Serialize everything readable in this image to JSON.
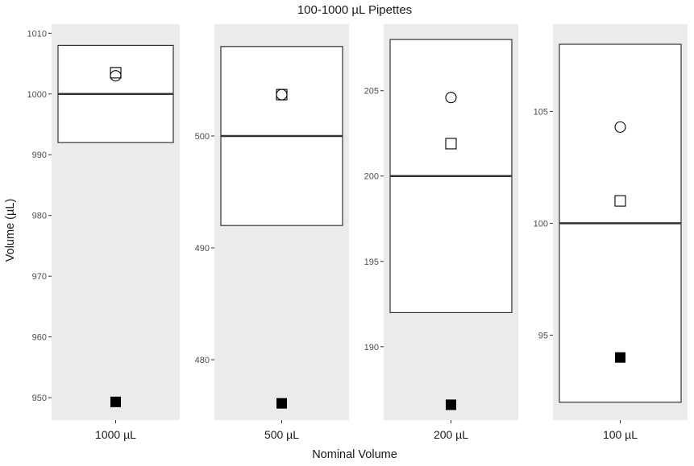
{
  "chart_data": {
    "type": "scatter",
    "title": "100-1000 µL Pipettes",
    "xlabel": "Nominal Volume",
    "ylabel": "Volume (µL)",
    "colors": {
      "panel_background": "#ebebeb",
      "tolerance_box_fill": "#ffffff",
      "tolerance_box_stroke": "#333333",
      "nominal_line": "#333333",
      "marker": "#000000"
    },
    "marker_legend": {
      "open-circle": "unlabeled",
      "open-square": "unlabeled",
      "filled-square": "unlabeled"
    },
    "panels": [
      {
        "category": "1000 µL",
        "nominal": 1000,
        "tolerance_box": [
          992,
          1008
        ],
        "ylim": [
          946.3,
          1011.5
        ],
        "yticks": [
          950,
          960,
          970,
          980,
          990,
          1000,
          1010
        ],
        "points": [
          {
            "marker": "open-square",
            "y": 1003.5
          },
          {
            "marker": "open-circle",
            "y": 1003.0
          },
          {
            "marker": "filled-square",
            "y": 949.3
          }
        ]
      },
      {
        "category": "500 µL",
        "nominal": 500,
        "tolerance_box": [
          492,
          508
        ],
        "ylim": [
          474.6,
          510.0
        ],
        "yticks": [
          480,
          490,
          500
        ],
        "points": [
          {
            "marker": "open-square",
            "y": 503.7
          },
          {
            "marker": "open-circle",
            "y": 503.7
          },
          {
            "marker": "filled-square",
            "y": 476.1
          }
        ]
      },
      {
        "category": "200 µL",
        "nominal": 200,
        "tolerance_box": [
          192,
          208
        ],
        "ylim": [
          185.7,
          208.9
        ],
        "yticks": [
          190,
          195,
          200,
          205
        ],
        "points": [
          {
            "marker": "open-circle",
            "y": 204.6
          },
          {
            "marker": "open-square",
            "y": 201.9
          },
          {
            "marker": "filled-square",
            "y": 186.6
          }
        ]
      },
      {
        "category": "100 µL",
        "nominal": 100,
        "tolerance_box": [
          92,
          108
        ],
        "ylim": [
          91.2,
          108.9
        ],
        "yticks": [
          95,
          100,
          105
        ],
        "points": [
          {
            "marker": "open-circle",
            "y": 104.3
          },
          {
            "marker": "open-square",
            "y": 101.0
          },
          {
            "marker": "filled-square",
            "y": 94.0
          }
        ]
      }
    ]
  }
}
